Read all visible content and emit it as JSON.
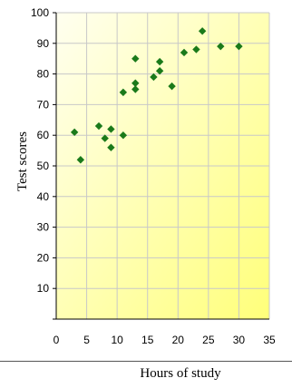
{
  "chart_data": {
    "type": "scatter",
    "title": "",
    "xlabel": "Hours of study",
    "ylabel": "Test scores",
    "xlim": [
      0,
      35
    ],
    "ylim": [
      0,
      100
    ],
    "xticks": [
      0,
      5,
      10,
      15,
      20,
      25,
      30,
      35
    ],
    "yticks": [
      10,
      20,
      30,
      40,
      50,
      60,
      70,
      80,
      90,
      100
    ],
    "grid": true,
    "legend": "none",
    "background": "yellow-gradient",
    "colors": {
      "marker": "#1a7a1a",
      "grid": "#c8c8c8",
      "axis": "#000000",
      "background_light": "#fffff0",
      "background_dark": "#ffff7a"
    },
    "points": [
      {
        "x": 3,
        "y": 61
      },
      {
        "x": 4,
        "y": 52
      },
      {
        "x": 7,
        "y": 63
      },
      {
        "x": 8,
        "y": 59
      },
      {
        "x": 9,
        "y": 62
      },
      {
        "x": 9,
        "y": 56
      },
      {
        "x": 11,
        "y": 74
      },
      {
        "x": 11,
        "y": 60
      },
      {
        "x": 13,
        "y": 85
      },
      {
        "x": 13,
        "y": 77
      },
      {
        "x": 13,
        "y": 75
      },
      {
        "x": 16,
        "y": 79
      },
      {
        "x": 17,
        "y": 84
      },
      {
        "x": 17,
        "y": 81
      },
      {
        "x": 19,
        "y": 76
      },
      {
        "x": 21,
        "y": 87
      },
      {
        "x": 23,
        "y": 88
      },
      {
        "x": 24,
        "y": 94
      },
      {
        "x": 27,
        "y": 89
      },
      {
        "x": 30,
        "y": 89
      }
    ]
  }
}
